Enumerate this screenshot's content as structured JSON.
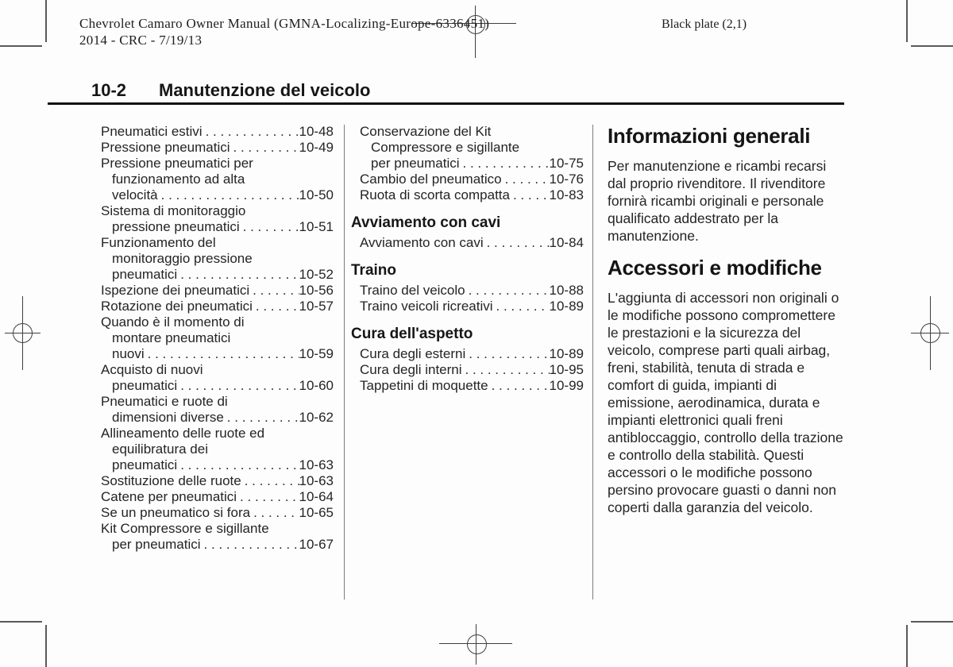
{
  "page": {
    "stamp_line1": "Chevrolet Camaro Owner Manual (GMNA-Localizing-Europe-6336451)",
    "stamp_line2": "2014 - CRC - 7/19/13",
    "plate_label": "Black plate (2,1)",
    "page_number": "10-2",
    "chapter_title": "Manutenzione del veicolo"
  },
  "toc": {
    "leader": ". . . . . . . . . . . . . . . . . . . . . . . . . . . . . . . . . . . . . . . . . . . . . . . . . .",
    "left": {
      "entries": [
        {
          "lines": [],
          "last": "Pneumatici estivi",
          "page": "10-48"
        },
        {
          "lines": [],
          "last": "Pressione pneumatici",
          "page": "10-49"
        },
        {
          "lines": [
            "Pressione pneumatici per",
            "funzionamento ad alta"
          ],
          "last": "velocità",
          "page": "10-50"
        },
        {
          "lines": [
            "Sistema di monitoraggio"
          ],
          "last": "pressione pneumatici",
          "page": "10-51"
        },
        {
          "lines": [
            "Funzionamento del",
            "monitoraggio pressione"
          ],
          "last": "pneumatici",
          "page": "10-52"
        },
        {
          "lines": [],
          "last": "Ispezione dei pneumatici",
          "page": "10-56"
        },
        {
          "lines": [],
          "last": "Rotazione dei pneumatici",
          "page": "10-57"
        },
        {
          "lines": [
            "Quando è il momento di",
            "montare pneumatici"
          ],
          "last": "nuovi",
          "page": "10-59"
        },
        {
          "lines": [
            "Acquisto di nuovi"
          ],
          "last": "pneumatici",
          "page": "10-60"
        },
        {
          "lines": [
            "Pneumatici e ruote di"
          ],
          "last": "dimensioni diverse",
          "page": "10-62"
        },
        {
          "lines": [
            "Allineamento delle ruote ed",
            "equilibratura dei"
          ],
          "last": "pneumatici",
          "page": "10-63"
        },
        {
          "lines": [],
          "last": "Sostituzione delle ruote",
          "page": "10-63"
        },
        {
          "lines": [],
          "last": "Catene per pneumatici",
          "page": "10-64"
        },
        {
          "lines": [],
          "last": "Se un pneumatico si fora",
          "page": "10-65"
        },
        {
          "lines": [
            "Kit Compressore e sigillante"
          ],
          "last": "per pneumatici",
          "page": "10-67"
        }
      ]
    },
    "middle": {
      "sections": [
        {
          "heading": "",
          "entries": [
            {
              "lines": [
                "Conservazione del Kit",
                "Compressore e sigillante"
              ],
              "last": "per pneumatici",
              "page": "10-75"
            },
            {
              "lines": [],
              "last": "Cambio del pneumatico",
              "page": "10-76"
            },
            {
              "lines": [],
              "last": "Ruota di scorta compatta",
              "page": "10-83"
            }
          ]
        },
        {
          "heading": "Avviamento con cavi",
          "entries": [
            {
              "lines": [],
              "last": "Avviamento con cavi",
              "page": "10-84"
            }
          ]
        },
        {
          "heading": "Traino",
          "entries": [
            {
              "lines": [],
              "last": "Traino del veicolo",
              "page": "10-88"
            },
            {
              "lines": [],
              "last": "Traino veicoli ricreativi",
              "page": "10-89"
            }
          ]
        },
        {
          "heading": "Cura dell'aspetto",
          "entries": [
            {
              "lines": [],
              "last": "Cura degli esterni",
              "page": "10-89"
            },
            {
              "lines": [],
              "last": "Cura degli interni",
              "page": "10-95"
            },
            {
              "lines": [],
              "last": "Tappetini di moquette",
              "page": "10-99"
            }
          ]
        }
      ]
    }
  },
  "articles": [
    {
      "heading": "Informazioni generali",
      "body": "Per manutenzione e ricambi recarsi dal proprio rivenditore. Il rivenditore fornirà ricambi originali e personale qualificato addestrato per la manutenzione."
    },
    {
      "heading": "Accessori e modifiche",
      "body": "L'aggiunta di accessori non originali o le modifiche possono compromettere le prestazioni e la sicurezza del veicolo, comprese parti quali airbag, freni, stabilità, tenuta di strada e comfort di guida, impianti di emissione, aerodinamica, durata e impianti elettronici quali freni antibloccaggio, controllo della trazione e controllo della stabilità. Questi accessori o le modifiche possono persino provocare guasti o danni non coperti dalla garanzia del veicolo."
    }
  ]
}
